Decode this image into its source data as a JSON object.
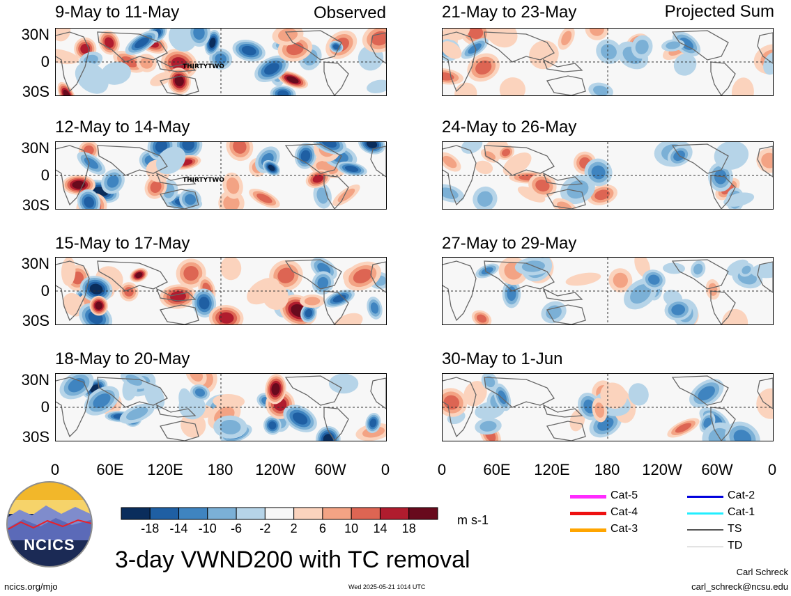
{
  "title": "3-day VWND200 with TC removal",
  "units": "m s-1",
  "left_column_label": "Observed",
  "right_column_label": "Projected Sum",
  "panels_left": [
    {
      "title": "9-May to 11-May",
      "storm_label": "THIRTYTWO"
    },
    {
      "title": "12-May to 14-May",
      "storm_label": "THIRTYTWO"
    },
    {
      "title": "15-May to 17-May",
      "storm_label": ""
    },
    {
      "title": "18-May to 20-May",
      "storm_label": ""
    }
  ],
  "panels_right": [
    {
      "title": "21-May to 23-May"
    },
    {
      "title": "24-May to 26-May"
    },
    {
      "title": "27-May to 29-May"
    },
    {
      "title": "30-May to 1-Jun"
    }
  ],
  "lat_labels": [
    "30N",
    "0",
    "30S"
  ],
  "lon_labels": [
    "0",
    "60E",
    "120E",
    "180",
    "120W",
    "60W",
    "0"
  ],
  "colorbar": {
    "colors": [
      "#0a2d5c",
      "#1f5fa3",
      "#3f84c0",
      "#7bb0d6",
      "#b6d4e8",
      "#f7f7f7",
      "#fbd3bd",
      "#f3a384",
      "#dd6553",
      "#b01c2e",
      "#680a1d"
    ],
    "labels": [
      "-18",
      "-14",
      "-10",
      "-6",
      "-2",
      "2",
      "6",
      "10",
      "14",
      "18"
    ]
  },
  "track_legend": [
    {
      "label": "Cat-5",
      "color": "#ff2bff"
    },
    {
      "label": "Cat-4",
      "color": "#ee1111"
    },
    {
      "label": "Cat-3",
      "color": "#ffa500"
    },
    {
      "label": "Cat-2",
      "color": "#0000dd"
    },
    {
      "label": "Cat-1",
      "color": "#22eeff"
    },
    {
      "label": "TS",
      "color": "#555555"
    },
    {
      "label": "TD",
      "color": "#bbbbbb"
    }
  ],
  "logo_text": "NCICS",
  "footer": {
    "website": "ncics.org/mjo",
    "timestamp": "Wed 2025-05-21 1014 UTC",
    "author": "Carl Schreck",
    "email": "carl_schreck@ncsu.edu"
  }
}
